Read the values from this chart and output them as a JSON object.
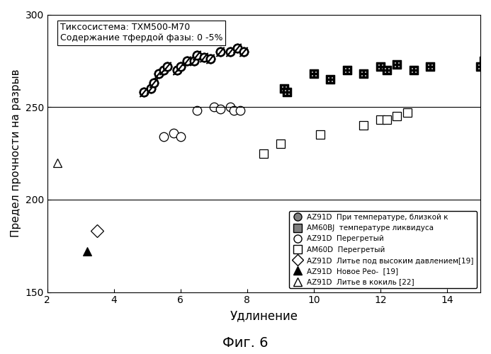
{
  "title_text": "Тиксосистема: TXM500-M70\nСодержание тфердой фазы: 0 -5%",
  "xlabel": "Удлинение",
  "ylabel": "Предел прочности на разрыв",
  "fig_label": "Фиг. 6",
  "xlim": [
    2,
    15
  ],
  "ylim": [
    150,
    300
  ],
  "xticks": [
    2,
    4,
    6,
    8,
    10,
    12,
    14
  ],
  "yticks": [
    150,
    200,
    250,
    300
  ],
  "hlines": [
    200,
    250
  ],
  "AZ91D_near_liq": {
    "x": [
      4.9,
      5.1,
      5.2,
      5.35,
      5.5,
      5.6,
      5.9,
      6.0,
      6.2,
      6.4,
      6.5,
      6.7,
      6.9,
      7.2,
      7.5,
      7.7,
      7.9
    ],
    "y": [
      258,
      260,
      263,
      268,
      270,
      272,
      270,
      272,
      275,
      275,
      278,
      277,
      276,
      280,
      280,
      282,
      280
    ]
  },
  "AM60BJ_near_liq": {
    "x": [
      9.1,
      9.2,
      10.0,
      10.5,
      11.0,
      11.5,
      12.0,
      12.2,
      12.5,
      13.0,
      13.5,
      15.0,
      15.1
    ],
    "y": [
      260,
      258,
      268,
      265,
      270,
      268,
      272,
      270,
      273,
      270,
      272,
      272,
      275
    ]
  },
  "AZ91D_superheated": {
    "x": [
      5.5,
      5.8,
      6.0,
      6.5,
      7.0,
      7.2,
      7.5,
      7.6,
      7.8
    ],
    "y": [
      234,
      236,
      234,
      248,
      250,
      249,
      250,
      248,
      248
    ]
  },
  "AM60D_superheated": {
    "x": [
      8.5,
      9.0,
      10.2,
      11.5,
      12.0,
      12.2,
      12.5,
      12.8
    ],
    "y": [
      225,
      230,
      235,
      240,
      243,
      243,
      245,
      247
    ]
  },
  "AZ91D_hpdc": {
    "x": [
      3.5
    ],
    "y": [
      183
    ]
  },
  "AZ91D_new_rheo": {
    "x": [
      3.2
    ],
    "y": [
      172
    ]
  },
  "AZ91D_gravity": {
    "x": [
      2.3
    ],
    "y": [
      220
    ]
  },
  "legend_entries": [
    "AZ91D  При температуре, близкой к",
    "AM60BJ  температуре ликвидуса",
    "AZ91D  Перегретый",
    "AM60D  Перегретый",
    "AZ91D  Литье под высоким давлением[19]",
    "AZ91D  Новое Рео-  [19]",
    "AZ91D  Литье в кокиль [22]"
  ]
}
